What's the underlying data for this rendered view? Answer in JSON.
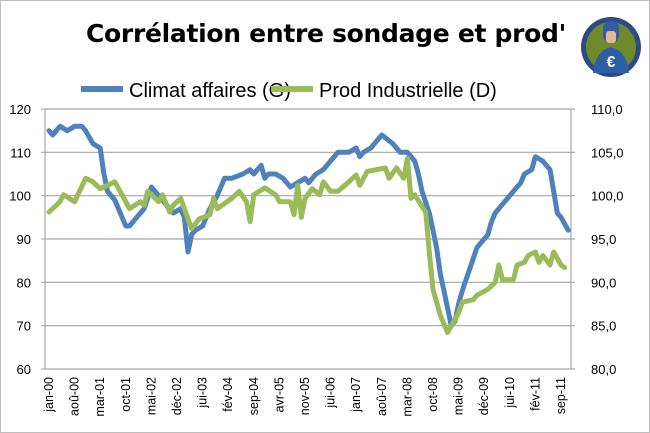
{
  "chart_data": {
    "type": "line",
    "title": "Corrélation entre sondage et prod'",
    "legend_position": "top",
    "grid": true,
    "y_left": {
      "ylim": [
        60,
        120
      ],
      "ticks": [
        "60",
        "70",
        "80",
        "90",
        "100",
        "110",
        "120"
      ]
    },
    "y_right": {
      "ylim": [
        80,
        110
      ],
      "ticks": [
        "80,0",
        "85,0",
        "90,0",
        "95,0",
        "100,0",
        "105,0",
        "110,0"
      ]
    },
    "x_ticks": [
      "jan-00",
      "aoû-00",
      "mar-01",
      "oct-01",
      "mai-02",
      "déc-02",
      "jui-03",
      "fév-04",
      "sep-04",
      "avr-05",
      "nov-05",
      "jui-06",
      "jan-07",
      "aoû-07",
      "mar-08",
      "oct-08",
      "mai-09",
      "déc-09",
      "jui-10",
      "fév-11",
      "sep-11"
    ],
    "x_range": [
      "2000-01",
      "2011-12"
    ],
    "series": [
      {
        "name": "Climat affaires (G)",
        "axis": "left",
        "color": "#4f81bd",
        "x": [
          "2000-01",
          "2000-02",
          "2000-04",
          "2000-06",
          "2000-08",
          "2000-10",
          "2000-11",
          "2001-01",
          "2001-03",
          "2001-04",
          "2001-05",
          "2001-07",
          "2001-09",
          "2001-10",
          "2001-11",
          "2002-01",
          "2002-03",
          "2002-05",
          "2002-07",
          "2002-09",
          "2002-11",
          "2003-01",
          "2003-02",
          "2003-03",
          "2003-04",
          "2003-05",
          "2003-07",
          "2003-08",
          "2003-09",
          "2003-11",
          "2004-01",
          "2004-03",
          "2004-06",
          "2004-08",
          "2004-09",
          "2004-11",
          "2004-12",
          "2005-01",
          "2005-03",
          "2005-05",
          "2005-07",
          "2005-09",
          "2005-11",
          "2005-12",
          "2006-02",
          "2006-04",
          "2006-06",
          "2006-08",
          "2006-11",
          "2007-01",
          "2007-02",
          "2007-03",
          "2007-05",
          "2007-07",
          "2007-08",
          "2007-11",
          "2008-01",
          "2008-03",
          "2008-05",
          "2008-06",
          "2008-07",
          "2008-09",
          "2008-10",
          "2008-11",
          "2008-12",
          "2009-01",
          "2009-02",
          "2009-03",
          "2009-04",
          "2009-05",
          "2009-06",
          "2009-08",
          "2009-10",
          "2010-01",
          "2010-02",
          "2010-03",
          "2010-05",
          "2010-08",
          "2010-10",
          "2010-11",
          "2011-01",
          "2011-02",
          "2011-04",
          "2011-06",
          "2011-07",
          "2011-08",
          "2011-09",
          "2011-11"
        ],
        "y": [
          115,
          114,
          116,
          115,
          116,
          116,
          115,
          112,
          111,
          105,
          101,
          99,
          95,
          93,
          93,
          95,
          97,
          102,
          100,
          98,
          96,
          97,
          95,
          87,
          91,
          92,
          93,
          95,
          97,
          100,
          104,
          104,
          105,
          106,
          105,
          107,
          104,
          105,
          105,
          104,
          102,
          103,
          104,
          103,
          105,
          106,
          108,
          110,
          110,
          111,
          109,
          110,
          111,
          113,
          114,
          112,
          110,
          110,
          108,
          105,
          101,
          96,
          92,
          88,
          82,
          78,
          74,
          70,
          71,
          75,
          78,
          83,
          88,
          91,
          94,
          96,
          98,
          101,
          103,
          105,
          106,
          109,
          108,
          106,
          101,
          96,
          95,
          92
        ]
      },
      {
        "name": "Prod Industrielle (D)",
        "axis": "right",
        "color": "#9bbb59",
        "x": [
          "2000-01",
          "2000-04",
          "2000-05",
          "2000-08",
          "2000-09",
          "2000-11",
          "2001-01",
          "2001-03",
          "2001-05",
          "2001-07",
          "2001-10",
          "2001-11",
          "2002-02",
          "2002-03",
          "2002-04",
          "2002-07",
          "2002-08",
          "2002-10",
          "2002-11",
          "2003-01",
          "2003-02",
          "2003-04",
          "2003-06",
          "2003-09",
          "2003-10",
          "2003-11",
          "2004-03",
          "2004-05",
          "2004-07",
          "2004-08",
          "2004-09",
          "2004-12",
          "2005-03",
          "2005-04",
          "2005-07",
          "2005-08",
          "2005-09",
          "2005-10",
          "2005-11",
          "2006-01",
          "2006-03",
          "2006-04",
          "2006-06",
          "2006-08",
          "2006-11",
          "2007-01",
          "2007-02",
          "2007-04",
          "2007-09",
          "2007-10",
          "2007-12",
          "2008-02",
          "2008-03",
          "2008-04",
          "2008-05",
          "2008-08",
          "2008-09",
          "2008-10",
          "2008-12",
          "2009-02",
          "2009-05",
          "2009-06",
          "2009-09",
          "2009-10",
          "2010-01",
          "2010-03",
          "2010-04",
          "2010-05",
          "2010-08",
          "2010-09",
          "2010-11",
          "2010-12",
          "2011-02",
          "2011-03",
          "2011-04",
          "2011-06",
          "2011-07",
          "2011-09",
          "2011-10"
        ],
        "y": [
          98.1,
          99.3,
          100.1,
          99.3,
          100.2,
          102,
          101.6,
          100.8,
          101.2,
          101.6,
          99.3,
          98.5,
          99.3,
          98.9,
          100.5,
          99.3,
          100.1,
          98.1,
          98.9,
          99.7,
          98.5,
          96.2,
          97.3,
          97.8,
          99.7,
          98.5,
          99.7,
          100.5,
          99.3,
          97,
          100.1,
          100.9,
          100.1,
          99.3,
          99.3,
          97.8,
          101.2,
          97.5,
          99.7,
          100.8,
          100.1,
          101.6,
          100.5,
          100.5,
          101.6,
          102.4,
          101.2,
          102.8,
          103.2,
          102,
          103.2,
          102,
          104.3,
          99.7,
          100.1,
          98.1,
          93.5,
          89.2,
          86.2,
          84.2,
          86.5,
          87.7,
          88,
          88.5,
          89.2,
          90,
          92,
          90.3,
          90.3,
          92,
          92.3,
          93.1,
          93.5,
          92.3,
          93.1,
          92,
          93.5,
          92,
          91.7
        ]
      }
    ]
  },
  "logo": {
    "icon": "superhero-euro-logo"
  }
}
